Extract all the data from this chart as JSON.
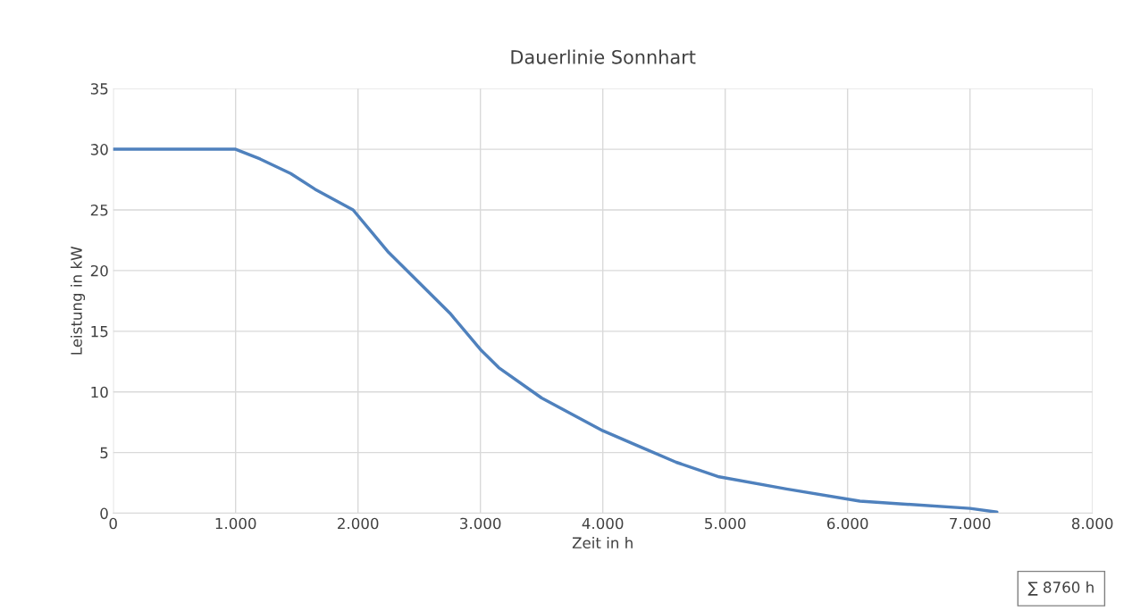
{
  "chart_data": {
    "type": "line",
    "title": "Dauerlinie Sonnhart",
    "xlabel": "Zeit in h",
    "ylabel": "Leistung in kW",
    "x": [
      0,
      500,
      1000,
      1200,
      1450,
      1650,
      1960,
      2250,
      2500,
      2750,
      3000,
      3150,
      3500,
      4000,
      4300,
      4600,
      4950,
      5500,
      6100,
      7000,
      7220
    ],
    "series": [
      {
        "color": "#4f81bd",
        "values": [
          30,
          30,
          30,
          29.2,
          28,
          26.7,
          25,
          21.5,
          19,
          16.5,
          13.5,
          12,
          9.5,
          6.8,
          5.5,
          4.2,
          3,
          2,
          1,
          0.4,
          0.1
        ]
      }
    ],
    "xlim": [
      0,
      8000
    ],
    "xticks": [
      0,
      {
        "value": 1000,
        "label": "1.000"
      },
      {
        "value": 2000,
        "label": "2.000"
      },
      {
        "value": 3000,
        "label": "3.000"
      },
      {
        "value": 4000,
        "label": "4.000"
      },
      {
        "value": 5000,
        "label": "5.000"
      },
      {
        "value": 6000,
        "label": "6.000"
      },
      {
        "value": 7000,
        "label": "7.000"
      },
      {
        "value": 8000,
        "label": "8.000"
      }
    ],
    "ylim": [
      0,
      35
    ],
    "yticks": [
      0,
      5,
      10,
      15,
      20,
      25,
      30,
      35
    ],
    "grid": true,
    "marker": "none",
    "line_style": "solid",
    "annotations": [
      "∑ 8760 h"
    ]
  }
}
